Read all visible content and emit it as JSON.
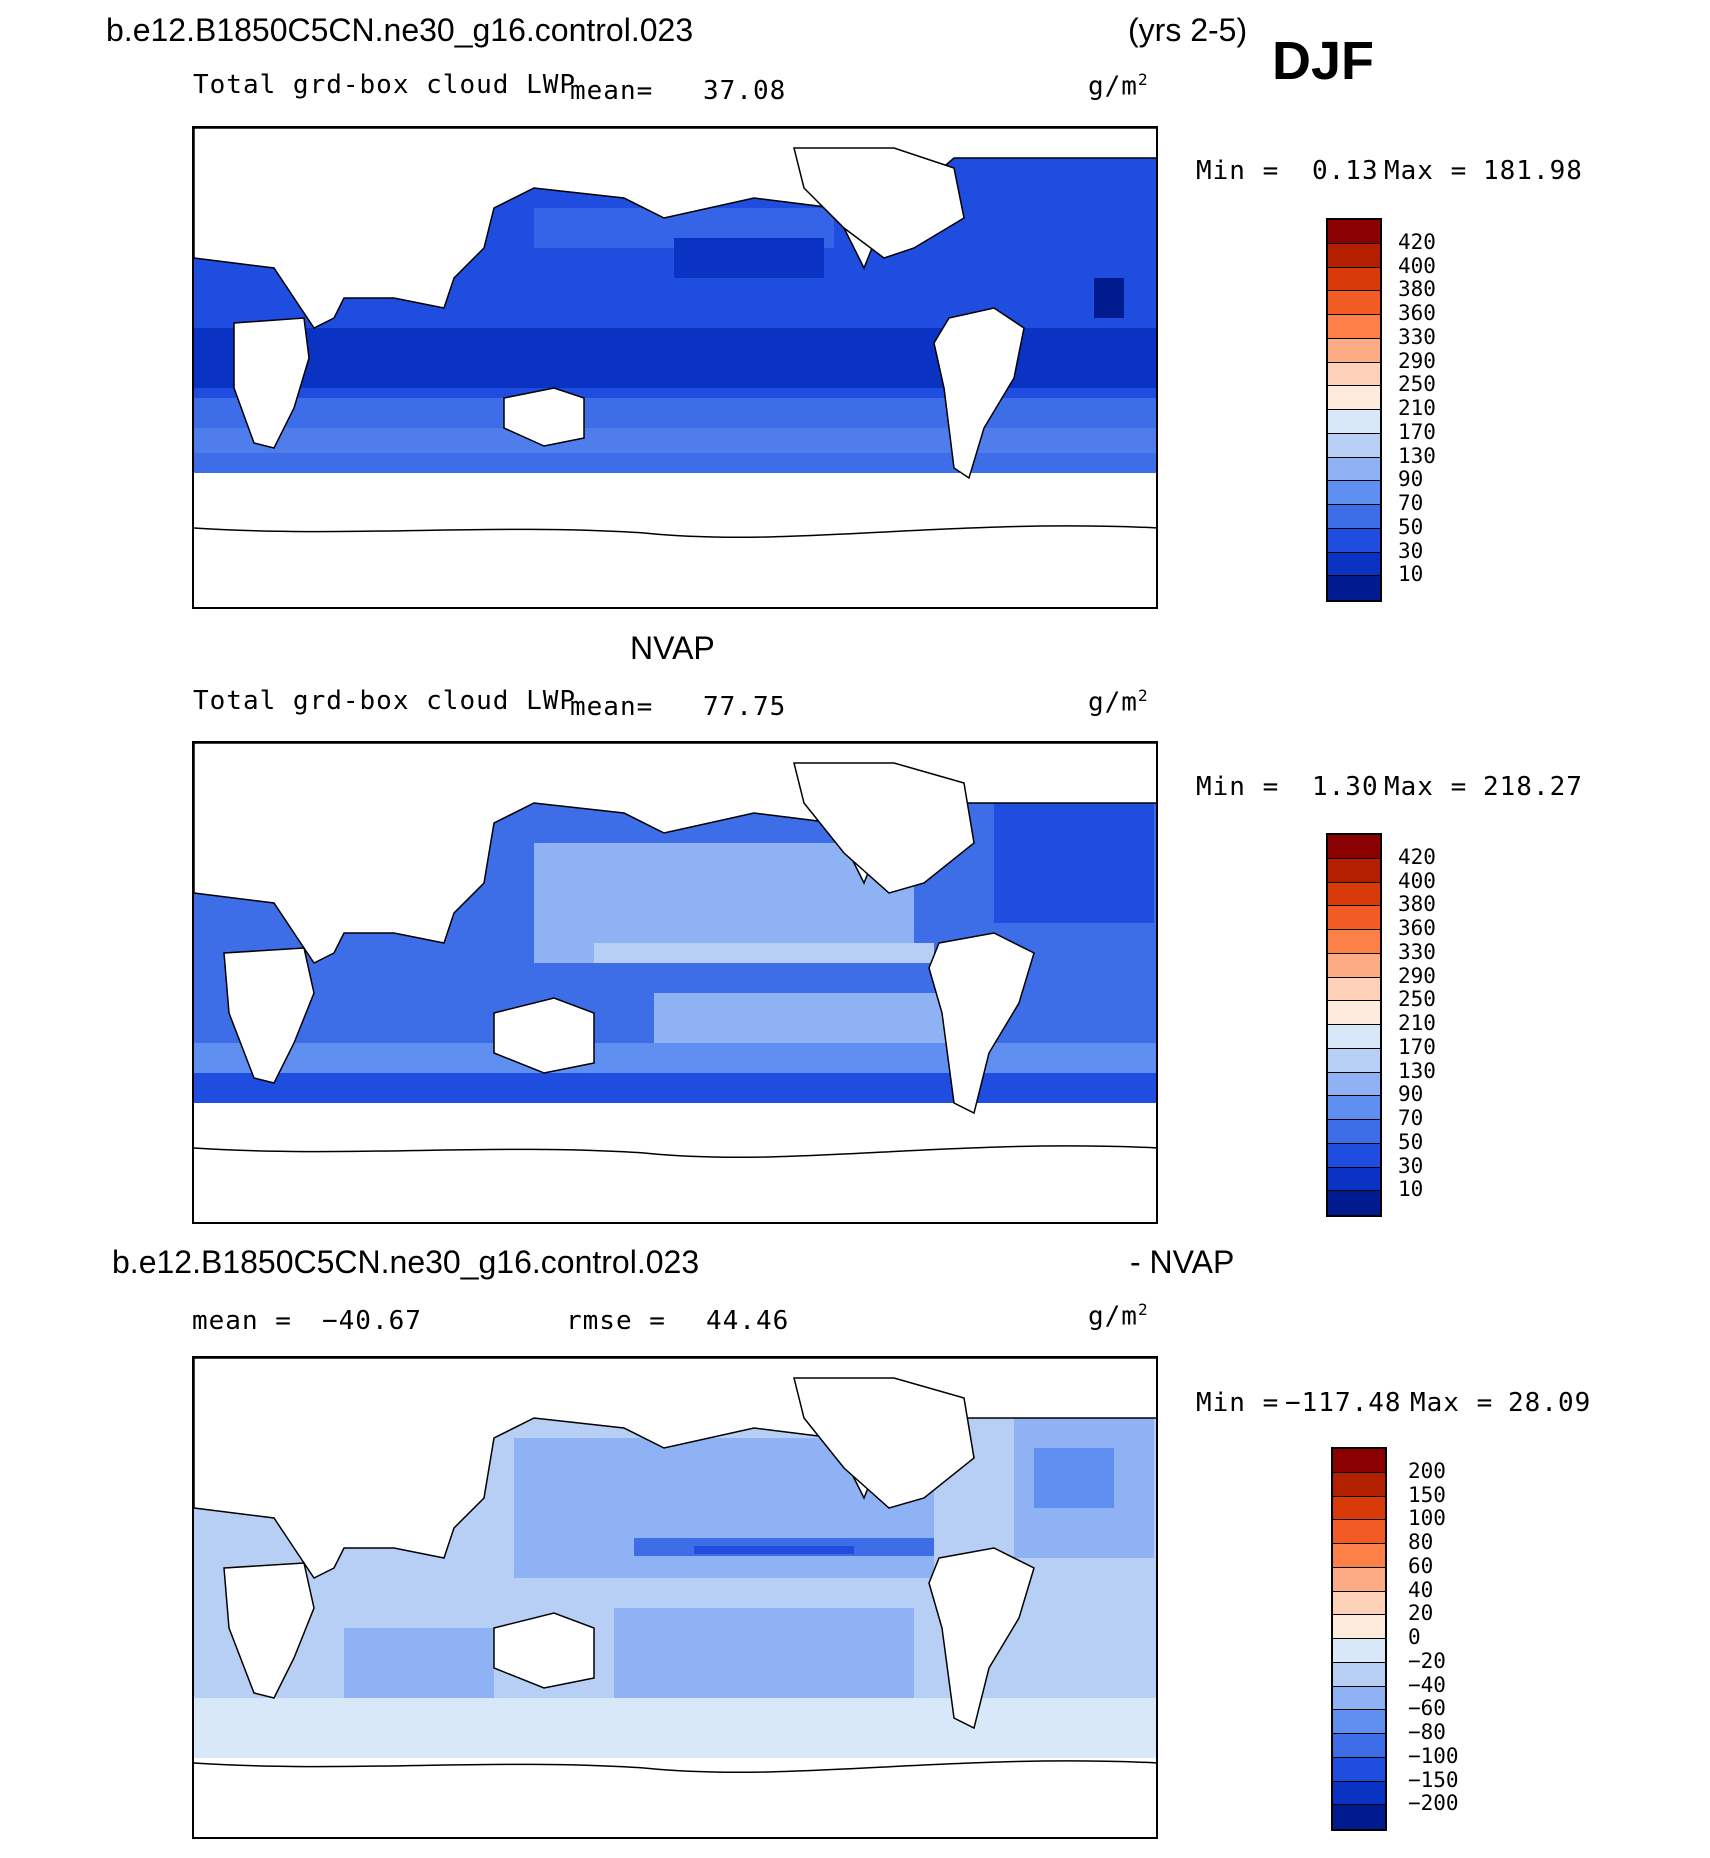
{
  "header": {
    "case_name": "b.e12.B1850C5CN.ne30_g16.control.023",
    "years": "(yrs 2-5)",
    "season": "DJF"
  },
  "panels": [
    {
      "id": "model",
      "title_left": "Total grd-box cloud LWP",
      "mean_label": "mean=",
      "mean_value": "37.08",
      "units": "g/m",
      "units_sup": "2",
      "min_label": "Min =",
      "min_value": "0.13",
      "max_label": "Max =",
      "max_value": "181.98",
      "colorbar_labels": [
        "420",
        "400",
        "380",
        "360",
        "330",
        "290",
        "250",
        "210",
        "170",
        "130",
        "90",
        "70",
        "50",
        "30",
        "10"
      ],
      "map_description_palette": "blue"
    },
    {
      "id": "obs",
      "heading": "NVAP",
      "title_left": "Total grd-box cloud LWP",
      "mean_label": "mean=",
      "mean_value": "77.75",
      "units": "g/m",
      "units_sup": "2",
      "min_label": "Min =",
      "min_value": "1.30",
      "max_label": "Max =",
      "max_value": "218.27",
      "colorbar_labels": [
        "420",
        "400",
        "380",
        "360",
        "330",
        "290",
        "250",
        "210",
        "170",
        "130",
        "90",
        "70",
        "50",
        "30",
        "10"
      ]
    },
    {
      "id": "diff",
      "heading_left": "b.e12.B1850C5CN.ne30_g16.control.023",
      "heading_right": "- NVAP",
      "mean_label": "mean = ",
      "mean_value": "−40.67",
      "rmse_label": "rmse = ",
      "rmse_value": "44.46",
      "units": "g/m",
      "units_sup": "2",
      "min_label": "Min =",
      "min_value": "−117.48",
      "max_label": "Max =",
      "max_value": "28.09",
      "colorbar_labels": [
        "200",
        "150",
        "100",
        "80",
        "60",
        "40",
        "20",
        "0",
        "−20",
        "−40",
        "−60",
        "−80",
        "−100",
        "−150",
        "−200"
      ]
    }
  ],
  "colors": {
    "abs_scale": [
      "#8b0000",
      "#b22000",
      "#d93a0a",
      "#f25b23",
      "#fc8048",
      "#fcac85",
      "#fdd1b8",
      "#fdebdc",
      "#d8e8f8",
      "#b7cff5",
      "#8fb2f4",
      "#5f8ff0",
      "#3e6de8",
      "#1f4de0",
      "#0a33c4",
      "#001b8f"
    ],
    "diff_scale": [
      "#8b0000",
      "#b22000",
      "#d93a0a",
      "#f25b23",
      "#fc8048",
      "#fcac85",
      "#fdd1b8",
      "#fdebdc",
      "#d8e8f8",
      "#b7cff5",
      "#8fb2f4",
      "#5f8ff0",
      "#3e6de8",
      "#1f4de0",
      "#0a33c4",
      "#001b8f"
    ]
  }
}
